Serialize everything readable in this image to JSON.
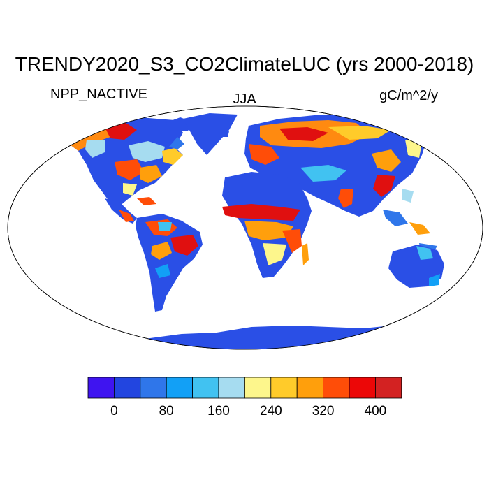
{
  "title": "TRENDY2020_S3_CO2ClimateLUC (yrs 2000-2018)",
  "left_label": "NPP_NACTIVE",
  "center_label": "JJA",
  "right_label": "gC/m^2/y",
  "colorbar": {
    "colors": [
      "#3f14f0",
      "#2245e0",
      "#2f76ea",
      "#12a0f6",
      "#41c2f1",
      "#a6dcf0",
      "#fdf68c",
      "#ffcb2a",
      "#ff9f0c",
      "#ff4d08",
      "#ec0707",
      "#d32222"
    ],
    "ticks": [
      "0",
      "80",
      "160",
      "240",
      "320",
      "400"
    ]
  }
}
